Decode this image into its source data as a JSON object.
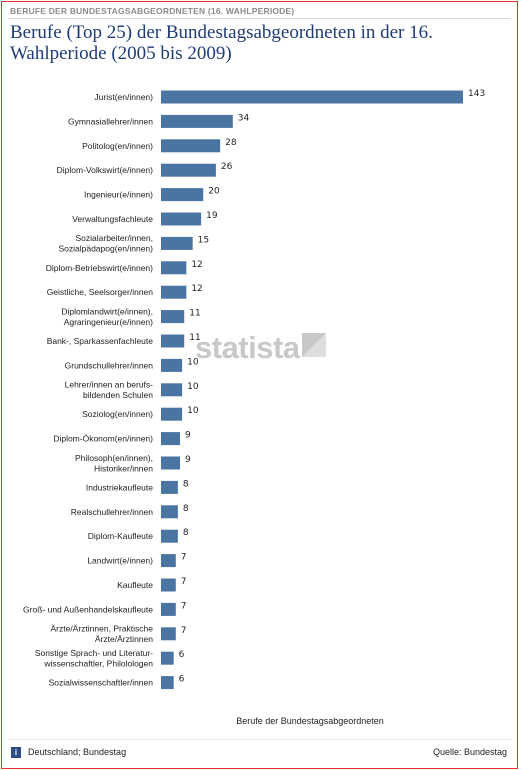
{
  "kicker": "BERUFE DER BUNDESTAGSABGEORDNETEN (16. WAHLPERIODE)",
  "title": "Berufe (Top 25) der Bundestagsabgeordneten in der 16. Wahlperiode (2005 bis 2009)",
  "watermark": "statista",
  "footer": {
    "left": "Deutschland; Bundestag",
    "right": "Quelle: Bundestag",
    "info_icon": "info-icon"
  },
  "colors": {
    "bar": "#4a75a3",
    "title": "#1f3c74",
    "frame": "#e8312f"
  },
  "chart_data": {
    "type": "bar",
    "orientation": "horizontal",
    "xlabel": "Berufe der Bundestagsabgeordneten",
    "ylabel": "",
    "xlim": [
      0,
      143
    ],
    "grid": false,
    "categories": [
      [
        "Jurist(en/innen)"
      ],
      [
        "Gymnasiallehrer/innen"
      ],
      [
        "Politolog(en/innen)"
      ],
      [
        "Diplom-Volkswirt(e/innen)"
      ],
      [
        "Ingenieur(e/innen)"
      ],
      [
        "Verwaltungsfachleute"
      ],
      [
        "Sozialarbeiter/innen,",
        "Sozialpädapog(en/innen)"
      ],
      [
        "Diplom-Betriebswirt(e/innen)"
      ],
      [
        "Geistliche, Seelsorger/innen"
      ],
      [
        "Diplomlandwirt(e/innen),",
        "Agraringenieur(e/innen)"
      ],
      [
        "Bank-, Sparkassenfachleute"
      ],
      [
        "Grundschullehrer/innen"
      ],
      [
        "Lehrer/innen an berufs-",
        "bildenden Schulen"
      ],
      [
        "Soziolog(en/innen)"
      ],
      [
        "Diplom-Ökonom(en/innen)"
      ],
      [
        "Philosoph(en/innen),",
        "Historiker/innen"
      ],
      [
        "Industriekaufleute"
      ],
      [
        "Realschullehrer/innen"
      ],
      [
        "Diplom-Kaufleute"
      ],
      [
        "Landwirt(e/innen)"
      ],
      [
        "Kaufleute"
      ],
      [
        "Groß- und Außenhandelskaufleute"
      ],
      [
        "Ärzte/Ärztinnen, Praktische",
        "Ärzte/Ärztinnen"
      ],
      [
        "Sonstige Sprach- und Literatur-",
        "wissenschaftler, Philolologen"
      ],
      [
        "Sozialwissenschaftler/innen"
      ]
    ],
    "values": [
      143,
      34,
      28,
      26,
      20,
      19,
      15,
      12,
      12,
      11,
      11,
      10,
      10,
      10,
      9,
      9,
      8,
      8,
      8,
      7,
      7,
      7,
      7,
      6,
      6
    ]
  }
}
